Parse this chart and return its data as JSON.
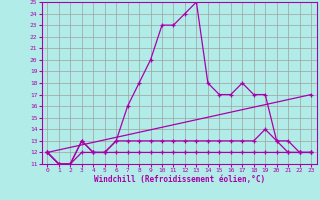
{
  "xlabel": "Windchill (Refroidissement éolien,°C)",
  "background_color": "#b2ece8",
  "grid_color": "#a0a0a0",
  "line_color": "#aa00aa",
  "xlim": [
    -0.5,
    23.5
  ],
  "ylim": [
    11,
    25
  ],
  "xticks": [
    0,
    1,
    2,
    3,
    4,
    5,
    6,
    7,
    8,
    9,
    10,
    11,
    12,
    13,
    14,
    15,
    16,
    17,
    18,
    19,
    20,
    21,
    22,
    23
  ],
  "yticks": [
    11,
    12,
    13,
    14,
    15,
    16,
    17,
    18,
    19,
    20,
    21,
    22,
    23,
    24,
    25
  ],
  "line1_x": [
    0,
    1,
    2,
    3,
    4,
    5,
    6,
    7,
    8,
    9,
    10,
    11,
    12,
    13,
    14,
    15,
    16,
    17,
    18,
    19,
    20,
    21,
    22,
    23
  ],
  "line1_y": [
    12,
    11,
    11,
    13,
    12,
    12,
    13,
    16,
    18,
    20,
    23,
    23,
    24,
    25,
    18,
    17,
    17,
    18,
    17,
    17,
    13,
    12,
    12,
    12
  ],
  "line2_x": [
    0,
    1,
    2,
    3,
    4,
    5,
    6,
    7,
    8,
    9,
    10,
    11,
    12,
    13,
    14,
    15,
    16,
    17,
    18,
    19,
    20,
    21,
    22,
    23
  ],
  "line2_y": [
    12,
    11,
    11,
    13,
    12,
    12,
    13,
    13,
    13,
    13,
    13,
    13,
    13,
    13,
    13,
    13,
    13,
    13,
    13,
    14,
    13,
    13,
    12,
    12
  ],
  "line3_x": [
    0,
    1,
    2,
    3,
    4,
    5,
    6,
    7,
    8,
    9,
    10,
    11,
    12,
    13,
    14,
    15,
    16,
    17,
    18,
    19,
    20,
    21,
    22,
    23
  ],
  "line3_y": [
    12,
    11,
    11,
    12,
    12,
    12,
    12,
    12,
    12,
    12,
    12,
    12,
    12,
    12,
    12,
    12,
    12,
    12,
    12,
    12,
    12,
    12,
    12,
    12
  ],
  "line4_x": [
    0,
    23
  ],
  "line4_y": [
    12,
    17
  ]
}
